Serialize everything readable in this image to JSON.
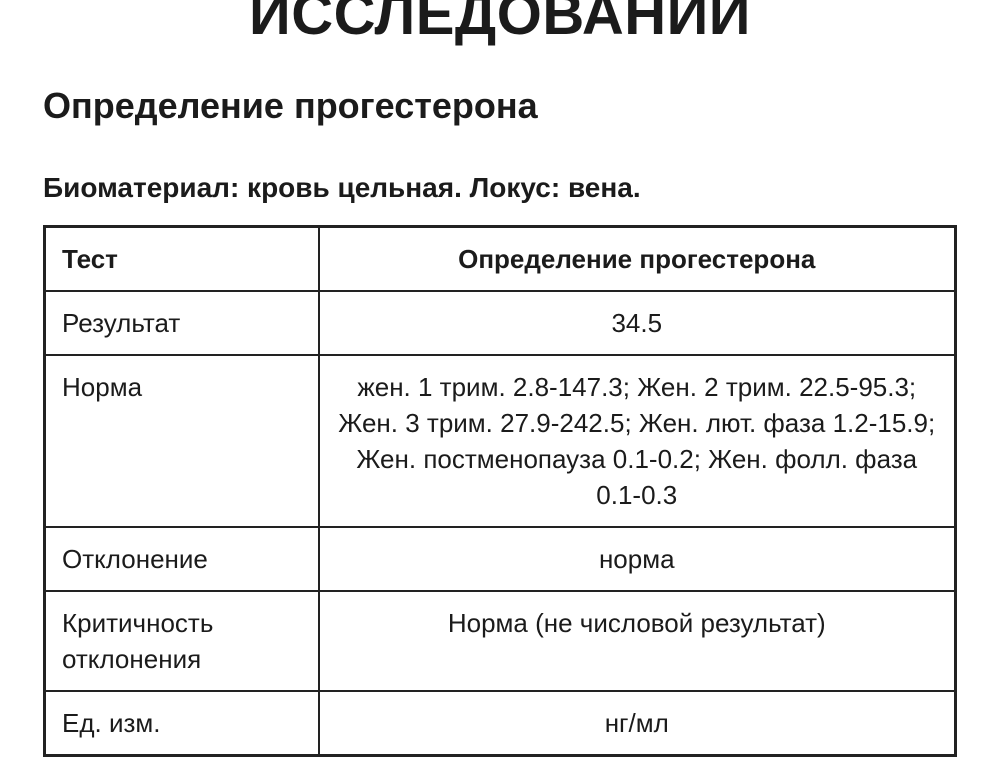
{
  "page": {
    "top_title": "ИССЛЕДОВАНИЙ",
    "heading": "Определение прогестерона",
    "subheading": "Биоматериал: кровь цельная. Локус: вена."
  },
  "table": {
    "header": {
      "label": "Тест",
      "value": "Определение прогестерона"
    },
    "rows": [
      {
        "label": "Результат",
        "value": "34.5"
      },
      {
        "label": "Норма",
        "value": "жен. 1 трим. 2.8-147.3; Жен. 2 трим. 22.5-95.3; Жен. 3 трим. 27.9-242.5; Жен. лют. фаза 1.2-15.9; Жен. постменопауза 0.1-0.2; Жен. фолл. фаза 0.1-0.3"
      },
      {
        "label": "Отклонение",
        "value": "норма"
      },
      {
        "label": "Критичность отклонения",
        "value": "Норма (не числовой результат)"
      },
      {
        "label": "Ед. изм.",
        "value": "нг/мл"
      }
    ]
  },
  "colors": {
    "text": "#1b1b1b",
    "border": "#222222",
    "background": "#ffffff"
  }
}
